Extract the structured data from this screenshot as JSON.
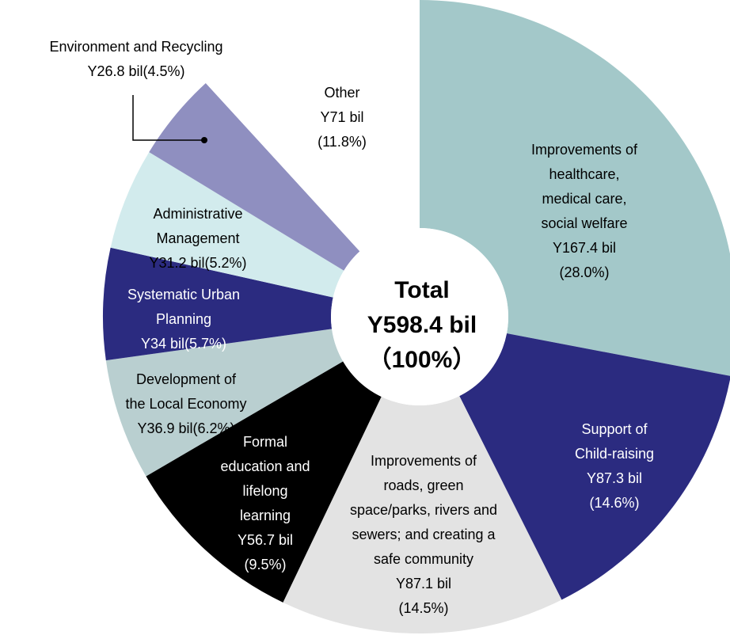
{
  "chart_data": {
    "type": "donut",
    "center_lines": [
      "Total",
      "Y598.4 bil",
      "（100%）"
    ],
    "slices": [
      {
        "label_lines": [
          "Improvements of",
          "healthcare,",
          "medical care,",
          "social welfare",
          "Y167.4 bil",
          "(28.0%)"
        ],
        "value": 167.4,
        "percent": 28.0,
        "color": "#a3c8c9"
      },
      {
        "label_lines": [
          "Support of",
          "Child-raising",
          "Y87.3 bil",
          "(14.6%)"
        ],
        "value": 87.3,
        "percent": 14.6,
        "color": "#2b2b80"
      },
      {
        "label_lines": [
          "Improvements of",
          "roads, green",
          "space/parks, rivers and",
          "sewers; and creating a",
          "safe community",
          "Y87.1 bil",
          "(14.5%)"
        ],
        "value": 87.1,
        "percent": 14.5,
        "color": "#e3e3e3"
      },
      {
        "label_lines": [
          "Formal",
          "education and",
          "lifelong",
          "learning",
          "Y56.7 bil",
          "(9.5%)"
        ],
        "value": 56.7,
        "percent": 9.5,
        "color": "#000000"
      },
      {
        "label_lines": [
          "Development of",
          "the Local Economy",
          "Y36.9 bil(6.2%)"
        ],
        "value": 36.9,
        "percent": 6.2,
        "color": "#b9cfd0"
      },
      {
        "label_lines": [
          "Systematic Urban",
          "Planning",
          "Y34 bil(5.7%)"
        ],
        "value": 34,
        "percent": 5.7,
        "color": "#2b2b80"
      },
      {
        "label_lines": [
          "Administrative",
          "Management",
          "Y31.2 bil(5.2%)"
        ],
        "value": 31.2,
        "percent": 5.2,
        "color": "#d2ebed"
      },
      {
        "label_lines": [
          "Environment and Recycling",
          "Y26.8 bil(4.5%)"
        ],
        "value": 26.8,
        "percent": 4.5,
        "color": "#8f8fc0"
      },
      {
        "label_lines": [
          "Other",
          "Y71 bil",
          "(11.8%)"
        ],
        "value": 71,
        "percent": 11.8,
        "color": "#ffffff"
      }
    ]
  }
}
